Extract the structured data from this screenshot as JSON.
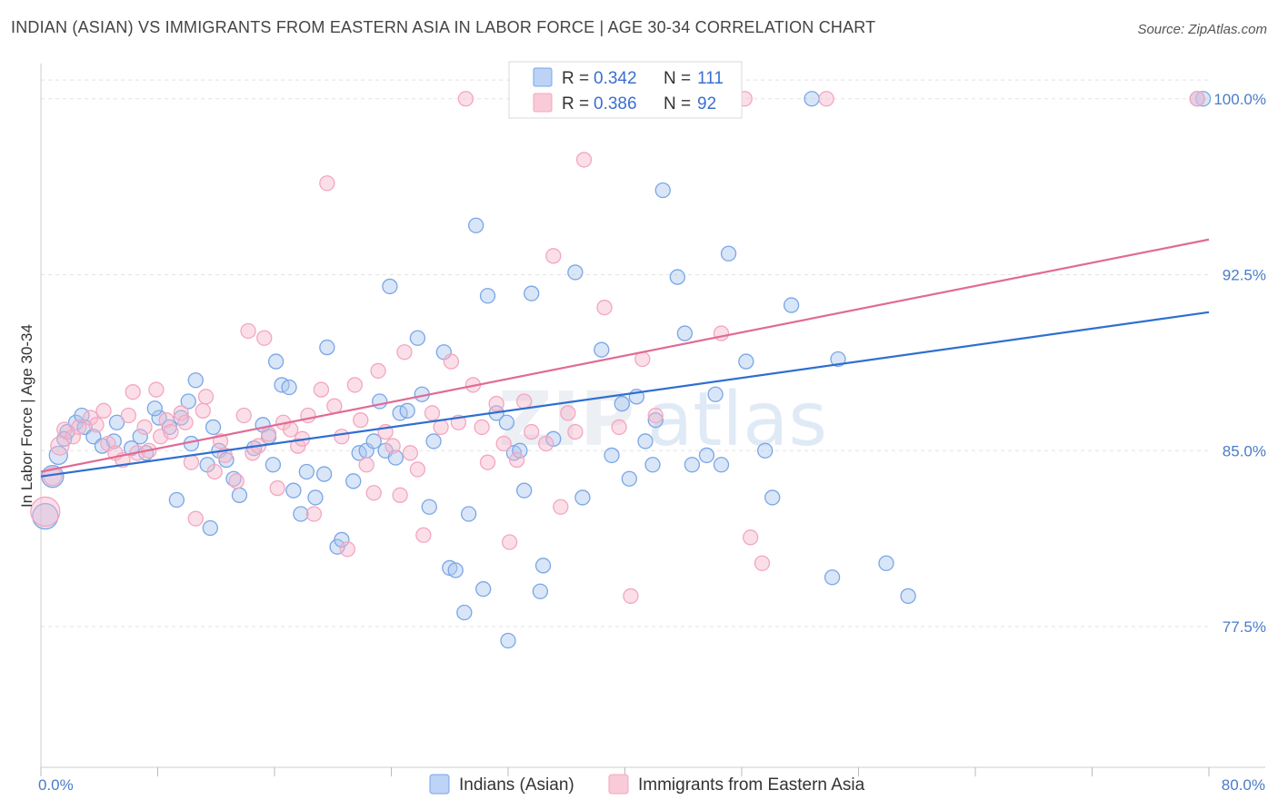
{
  "title": "INDIAN (ASIAN) VS IMMIGRANTS FROM EASTERN ASIA IN LABOR FORCE | AGE 30-34 CORRELATION CHART",
  "source": "Source: ZipAtlas.com",
  "watermark": {
    "zip": "ZIP",
    "atlas": "atlas"
  },
  "chart_data": {
    "type": "scatter",
    "ylabel": "In Labor Force | Age 30-34",
    "xlim": [
      0,
      80
    ],
    "ylim": [
      71.5,
      101.5
    ],
    "x_tick_labels": [
      "0.0%",
      "80.0%"
    ],
    "y_ticks": [
      77.5,
      85.0,
      92.5,
      100.0
    ],
    "y_tick_labels": [
      "77.5%",
      "85.0%",
      "92.5%",
      "100.0%"
    ],
    "grid": true,
    "legend_position": "top-center",
    "stats_legend": [
      {
        "r_label": "R = ",
        "r_value": "0.342",
        "n_label": "N = ",
        "n_value": "111",
        "color": "#a9c6f2"
      },
      {
        "r_label": "R = ",
        "r_value": "0.386",
        "n_label": "N = ",
        "n_value": "92",
        "color": "#f6b7cb"
      }
    ],
    "series": [
      {
        "name": "Indians (Asian)",
        "color": "#7aa6e6",
        "line_color": "#2f6fd0",
        "trend": {
          "x": [
            0,
            80
          ],
          "y": [
            83.9,
            90.9
          ]
        },
        "points": [
          [
            0.3,
            82.2,
            14
          ],
          [
            0.8,
            83.9,
            12
          ],
          [
            1.2,
            84.8,
            10
          ],
          [
            1.8,
            85.8,
            8
          ],
          [
            1.6,
            85.5,
            8
          ],
          [
            2.4,
            86.2,
            8
          ],
          [
            3.0,
            86.0,
            8
          ],
          [
            2.8,
            86.5,
            8
          ],
          [
            3.6,
            85.6,
            8
          ],
          [
            4.2,
            85.2,
            8
          ],
          [
            5.2,
            86.2,
            8
          ],
          [
            5.0,
            85.4,
            8
          ],
          [
            6.2,
            85.1,
            8
          ],
          [
            6.8,
            85.6,
            8
          ],
          [
            7.2,
            84.9,
            8
          ],
          [
            8.1,
            86.4,
            8
          ],
          [
            7.8,
            86.8,
            8
          ],
          [
            8.8,
            86.0,
            8
          ],
          [
            9.6,
            86.4,
            8
          ],
          [
            10.1,
            87.1,
            8
          ],
          [
            10.3,
            85.3,
            8
          ],
          [
            10.6,
            88.0,
            8
          ],
          [
            11.4,
            84.4,
            8
          ],
          [
            11.8,
            86.0,
            8
          ],
          [
            9.3,
            82.9,
            8
          ],
          [
            12.2,
            85.0,
            8
          ],
          [
            12.7,
            84.6,
            8
          ],
          [
            11.6,
            81.7,
            8
          ],
          [
            13.2,
            83.8,
            8
          ],
          [
            13.6,
            83.1,
            8
          ],
          [
            14.6,
            85.1,
            8
          ],
          [
            15.2,
            86.1,
            8
          ],
          [
            15.6,
            85.6,
            8
          ],
          [
            15.9,
            84.4,
            8
          ],
          [
            16.5,
            87.8,
            8
          ],
          [
            17.0,
            87.7,
            8
          ],
          [
            16.1,
            88.8,
            8
          ],
          [
            17.3,
            83.3,
            8
          ],
          [
            17.8,
            82.3,
            8
          ],
          [
            18.2,
            84.1,
            8
          ],
          [
            18.8,
            83.0,
            8
          ],
          [
            19.4,
            84.0,
            8
          ],
          [
            19.6,
            89.4,
            8
          ],
          [
            20.3,
            80.9,
            8
          ],
          [
            20.6,
            81.2,
            8
          ],
          [
            21.4,
            83.7,
            8
          ],
          [
            21.8,
            84.9,
            8
          ],
          [
            22.3,
            85.0,
            8
          ],
          [
            22.8,
            85.4,
            8
          ],
          [
            23.2,
            87.1,
            8
          ],
          [
            23.6,
            85.0,
            8
          ],
          [
            24.3,
            84.7,
            8
          ],
          [
            24.6,
            86.6,
            8
          ],
          [
            25.1,
            86.7,
            8
          ],
          [
            23.9,
            92.0,
            8
          ],
          [
            25.8,
            89.8,
            8
          ],
          [
            26.1,
            87.4,
            8
          ],
          [
            26.6,
            82.6,
            8
          ],
          [
            26.9,
            85.4,
            8
          ],
          [
            27.6,
            89.2,
            8
          ],
          [
            28.0,
            80.0,
            8
          ],
          [
            28.4,
            79.9,
            8
          ],
          [
            29.0,
            78.1,
            8
          ],
          [
            29.3,
            82.3,
            8
          ],
          [
            29.8,
            94.6,
            8
          ],
          [
            30.3,
            79.1,
            8
          ],
          [
            30.6,
            91.6,
            8
          ],
          [
            31.2,
            86.6,
            8
          ],
          [
            31.9,
            86.2,
            8
          ],
          [
            32.4,
            84.9,
            8
          ],
          [
            32.8,
            85.0,
            8
          ],
          [
            33.1,
            83.3,
            8
          ],
          [
            32.0,
            76.9,
            8
          ],
          [
            33.6,
            91.7,
            8
          ],
          [
            34.4,
            80.1,
            8
          ],
          [
            34.2,
            79.0,
            8
          ],
          [
            35.1,
            85.5,
            8
          ],
          [
            36.6,
            92.6,
            8
          ],
          [
            37.1,
            83.0,
            8
          ],
          [
            38.4,
            89.3,
            8
          ],
          [
            39.1,
            84.8,
            8
          ],
          [
            39.8,
            87.0,
            8
          ],
          [
            40.3,
            83.8,
            8
          ],
          [
            40.8,
            87.3,
            8
          ],
          [
            41.4,
            85.4,
            8
          ],
          [
            41.9,
            84.4,
            8
          ],
          [
            42.1,
            86.3,
            8
          ],
          [
            42.6,
            96.1,
            8
          ],
          [
            43.6,
            92.4,
            8
          ],
          [
            44.1,
            90.0,
            8
          ],
          [
            44.6,
            84.4,
            8
          ],
          [
            45.6,
            84.8,
            8
          ],
          [
            46.2,
            87.4,
            8
          ],
          [
            46.6,
            84.4,
            8
          ],
          [
            47.1,
            93.4,
            8
          ],
          [
            48.3,
            88.8,
            8
          ],
          [
            49.6,
            85.0,
            8
          ],
          [
            50.1,
            83.0,
            8
          ],
          [
            51.4,
            91.2,
            8
          ],
          [
            52.8,
            100.0,
            8
          ],
          [
            54.2,
            79.6,
            8
          ],
          [
            54.6,
            88.9,
            8
          ],
          [
            57.9,
            80.2,
            8
          ],
          [
            59.4,
            78.8,
            8
          ],
          [
            79.6,
            100.0,
            8
          ],
          [
            79.2,
            100.0,
            8
          ]
        ]
      },
      {
        "name": "Immigrants from Eastern Asia",
        "color": "#f4a6bf",
        "line_color": "#e06b95",
        "trend": {
          "x": [
            0,
            80
          ],
          "y": [
            84.1,
            94.0
          ]
        },
        "points": [
          [
            0.3,
            82.4,
            16
          ],
          [
            0.8,
            83.9,
            10
          ],
          [
            1.3,
            85.2,
            10
          ],
          [
            1.6,
            85.9,
            8
          ],
          [
            2.2,
            85.6,
            8
          ],
          [
            2.6,
            86.0,
            8
          ],
          [
            3.4,
            86.4,
            8
          ],
          [
            3.8,
            86.1,
            8
          ],
          [
            4.3,
            86.7,
            8
          ],
          [
            4.6,
            85.3,
            8
          ],
          [
            5.1,
            84.9,
            8
          ],
          [
            5.6,
            84.6,
            8
          ],
          [
            6.0,
            86.5,
            8
          ],
          [
            6.3,
            87.5,
            8
          ],
          [
            6.6,
            84.9,
            8
          ],
          [
            7.1,
            86.0,
            8
          ],
          [
            7.4,
            85.0,
            8
          ],
          [
            7.9,
            87.6,
            8
          ],
          [
            8.2,
            85.6,
            8
          ],
          [
            8.6,
            86.3,
            8
          ],
          [
            8.9,
            85.8,
            8
          ],
          [
            9.6,
            86.6,
            8
          ],
          [
            9.9,
            86.2,
            8
          ],
          [
            10.3,
            84.5,
            8
          ],
          [
            10.6,
            82.1,
            8
          ],
          [
            11.1,
            86.7,
            8
          ],
          [
            11.3,
            87.3,
            8
          ],
          [
            11.9,
            84.1,
            8
          ],
          [
            12.3,
            85.4,
            8
          ],
          [
            12.6,
            84.8,
            8
          ],
          [
            13.4,
            83.7,
            8
          ],
          [
            13.9,
            86.5,
            8
          ],
          [
            14.2,
            90.1,
            8
          ],
          [
            14.5,
            84.9,
            8
          ],
          [
            14.9,
            85.2,
            8
          ],
          [
            15.3,
            89.8,
            8
          ],
          [
            15.6,
            85.7,
            8
          ],
          [
            16.2,
            83.4,
            8
          ],
          [
            16.6,
            86.2,
            8
          ],
          [
            17.1,
            85.9,
            8
          ],
          [
            17.6,
            85.2,
            8
          ],
          [
            17.9,
            85.5,
            8
          ],
          [
            18.3,
            86.5,
            8
          ],
          [
            18.7,
            82.3,
            8
          ],
          [
            19.2,
            87.6,
            8
          ],
          [
            19.6,
            96.4,
            8
          ],
          [
            20.1,
            86.9,
            8
          ],
          [
            20.6,
            85.6,
            8
          ],
          [
            21.0,
            80.8,
            8
          ],
          [
            21.5,
            87.8,
            8
          ],
          [
            21.9,
            86.3,
            8
          ],
          [
            22.3,
            84.4,
            8
          ],
          [
            22.8,
            83.2,
            8
          ],
          [
            23.1,
            88.4,
            8
          ],
          [
            23.6,
            85.8,
            8
          ],
          [
            24.1,
            85.2,
            8
          ],
          [
            24.6,
            83.1,
            8
          ],
          [
            24.9,
            89.2,
            8
          ],
          [
            25.3,
            84.9,
            8
          ],
          [
            25.8,
            84.2,
            8
          ],
          [
            26.2,
            81.4,
            8
          ],
          [
            26.8,
            86.6,
            8
          ],
          [
            27.4,
            86.0,
            8
          ],
          [
            28.1,
            88.8,
            8
          ],
          [
            28.6,
            86.2,
            8
          ],
          [
            29.1,
            100.0,
            8
          ],
          [
            29.6,
            87.8,
            8
          ],
          [
            30.2,
            86.0,
            8
          ],
          [
            30.6,
            84.5,
            8
          ],
          [
            31.2,
            87.0,
            8
          ],
          [
            31.7,
            85.3,
            8
          ],
          [
            32.1,
            81.1,
            8
          ],
          [
            32.6,
            84.6,
            8
          ],
          [
            33.1,
            87.1,
            8
          ],
          [
            33.6,
            85.8,
            8
          ],
          [
            34.6,
            85.3,
            8
          ],
          [
            35.1,
            93.3,
            8
          ],
          [
            35.6,
            82.6,
            8
          ],
          [
            36.1,
            86.6,
            8
          ],
          [
            36.6,
            85.8,
            8
          ],
          [
            37.2,
            97.4,
            8
          ],
          [
            38.1,
            100.0,
            8
          ],
          [
            38.6,
            91.1,
            8
          ],
          [
            39.6,
            86.0,
            8
          ],
          [
            40.4,
            78.8,
            8
          ],
          [
            41.2,
            88.9,
            8
          ],
          [
            42.1,
            86.5,
            8
          ],
          [
            46.6,
            90.0,
            8
          ],
          [
            48.2,
            100.0,
            8
          ],
          [
            48.6,
            81.3,
            8
          ],
          [
            49.4,
            80.2,
            8
          ],
          [
            53.8,
            100.0,
            8
          ],
          [
            79.2,
            100.0,
            8
          ]
        ]
      }
    ]
  }
}
